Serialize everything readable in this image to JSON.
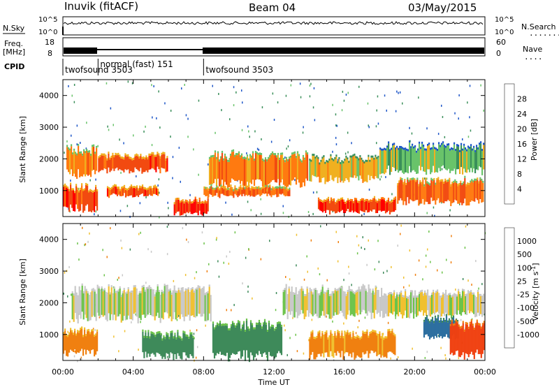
{
  "header": {
    "site": "Inuvik (fitACF)",
    "beam": "Beam 04",
    "date": "03/May/2015"
  },
  "panel_labels": {
    "nsky": "N.Sky",
    "nsky_ticks": [
      "10^5",
      "10^0"
    ],
    "nsearch": "N.Search",
    "nsearch_ticks": [
      "10^5",
      "10^0"
    ],
    "freq": "Freq.",
    "freq_unit": "[MHz]",
    "freq_ticks": [
      "18",
      "8"
    ],
    "nave": "Nave",
    "nave_ticks": [
      "60",
      "0"
    ],
    "cpid": "CPID",
    "dots_short": "....",
    "dots_long": "........"
  },
  "cpid_segments": [
    {
      "start_hour": 0.0,
      "end_hour": 2.0,
      "label": "twofsound 3503"
    },
    {
      "start_hour": 2.0,
      "end_hour": 8.0,
      "label": "normal (fast) 151"
    },
    {
      "start_hour": 8.0,
      "end_hour": 24.0,
      "label": "twofsound 3503"
    }
  ],
  "chart_data": [
    {
      "type": "heatmap",
      "parameter": "Power",
      "xlabel": "",
      "ylabel": "Slant Range [km]",
      "xlim": [
        0,
        24
      ],
      "ylim": [
        180,
        4500
      ],
      "yticks": [
        1000,
        2000,
        3000,
        4000
      ],
      "colorbar": {
        "label": "Power [dB]",
        "ticks": [
          "4",
          "8",
          "12",
          "16",
          "20",
          "24",
          "28"
        ],
        "colors": [
          "#0000ff",
          "#1e56c8",
          "#3a8f5a",
          "#69c36a",
          "#f0b020",
          "#ff7a10",
          "#f24a10",
          "#ff0000"
        ]
      },
      "echo_bands": [
        {
          "start_hour": 0.0,
          "end_hour": 2.0,
          "range_min_km": 400,
          "range_max_km": 1100,
          "power_db": 26
        },
        {
          "start_hour": 0.2,
          "end_hour": 2.0,
          "range_min_km": 1500,
          "range_max_km": 2300,
          "power_db": 22
        },
        {
          "start_hour": 2.0,
          "end_hour": 6.0,
          "range_min_km": 1600,
          "range_max_km": 2100,
          "power_db": 26
        },
        {
          "start_hour": 2.5,
          "end_hour": 5.5,
          "range_min_km": 800,
          "range_max_km": 1100,
          "power_db": 26
        },
        {
          "start_hour": 6.3,
          "end_hour": 8.3,
          "range_min_km": 250,
          "range_max_km": 700,
          "power_db": 28
        },
        {
          "start_hour": 8.3,
          "end_hour": 14.0,
          "range_min_km": 1200,
          "range_max_km": 2100,
          "power_db": 22
        },
        {
          "start_hour": 8.0,
          "end_hour": 13.0,
          "range_min_km": 800,
          "range_max_km": 1100,
          "power_db": 24
        },
        {
          "start_hour": 14.0,
          "end_hour": 18.0,
          "range_min_km": 1300,
          "range_max_km": 2000,
          "power_db": 18
        },
        {
          "start_hour": 14.5,
          "end_hour": 19.0,
          "range_min_km": 300,
          "range_max_km": 700,
          "power_db": 28
        },
        {
          "start_hour": 18.0,
          "end_hour": 24.0,
          "range_min_km": 1600,
          "range_max_km": 2400,
          "power_db": 14
        },
        {
          "start_hour": 19.0,
          "end_hour": 24.0,
          "range_min_km": 600,
          "range_max_km": 1300,
          "power_db": 24
        }
      ]
    },
    {
      "type": "heatmap",
      "parameter": "Velocity",
      "xlabel": "Time UT",
      "ylabel": "Slant Range [km]",
      "xlim": [
        0,
        24
      ],
      "ylim": [
        180,
        4500
      ],
      "xticks": [
        "00:00",
        "04:00",
        "08:00",
        "12:00",
        "16:00",
        "20:00",
        "00:00"
      ],
      "yticks": [
        1000,
        2000,
        3000,
        4000
      ],
      "colorbar": {
        "label": "Velocity [m s^-1]",
        "ticks": [
          "1000",
          "500",
          "100",
          "25",
          "-25",
          "-100",
          "-500",
          "-1000"
        ],
        "colors": [
          "#1a3caa",
          "#2d6fa0",
          "#3e8a5a",
          "#6cc34a",
          "#c8c8c8",
          "#f0c030",
          "#f08010",
          "#f04010",
          "#ff0000"
        ]
      },
      "echo_bands": [
        {
          "start_hour": 0.0,
          "end_hour": 2.0,
          "range_min_km": 400,
          "range_max_km": 1100,
          "velocity": -300
        },
        {
          "start_hour": 0.5,
          "end_hour": 8.5,
          "range_min_km": 1500,
          "range_max_km": 2400,
          "velocity": 0
        },
        {
          "start_hour": 4.5,
          "end_hour": 7.5,
          "range_min_km": 300,
          "range_max_km": 1000,
          "velocity": 200
        },
        {
          "start_hour": 8.5,
          "end_hour": 12.5,
          "range_min_km": 300,
          "range_max_km": 1300,
          "velocity": 200
        },
        {
          "start_hour": 12.5,
          "end_hour": 18.0,
          "range_min_km": 1600,
          "range_max_km": 2400,
          "velocity": 0
        },
        {
          "start_hour": 14.0,
          "end_hour": 19.0,
          "range_min_km": 300,
          "range_max_km": 1000,
          "velocity": -150
        },
        {
          "start_hour": 18.0,
          "end_hour": 24.0,
          "range_min_km": 1600,
          "range_max_km": 2300,
          "velocity": 0
        },
        {
          "start_hour": 20.5,
          "end_hour": 22.5,
          "range_min_km": 900,
          "range_max_km": 1500,
          "velocity": 900
        },
        {
          "start_hour": 22.0,
          "end_hour": 24.0,
          "range_min_km": 300,
          "range_max_km": 1300,
          "velocity": -600
        }
      ]
    }
  ]
}
